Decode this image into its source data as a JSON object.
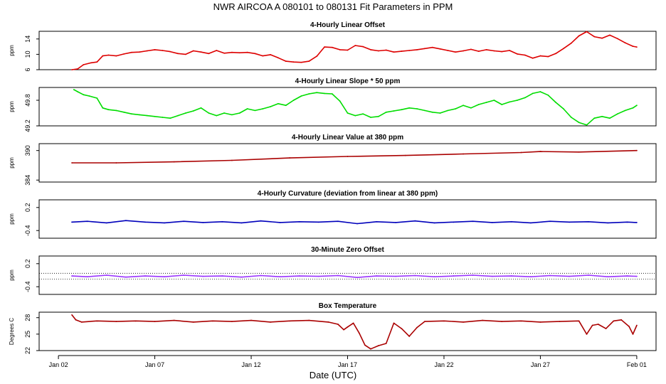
{
  "title": "NWR   AIRCOA A   080101 to 080131   Fit Parameters in PPM",
  "x_axis": {
    "label": "Date (UTC)",
    "ticks": [
      "Jan 02",
      "Jan 07",
      "Jan 12",
      "Jan 17",
      "Jan 22",
      "Jan 27",
      "Feb 01"
    ],
    "tick_days": [
      2,
      7,
      12,
      17,
      22,
      27,
      32
    ]
  },
  "chart_data": [
    {
      "type": "line",
      "title": "4-Hourly Linear Offset",
      "ylabel": "ppm",
      "yticks": [
        "6",
        "10",
        "14"
      ],
      "ytick_values": [
        6,
        10,
        14
      ],
      "ylim": [
        6,
        16
      ],
      "color": "#dd0000",
      "series": [
        {
          "x": [
            2.7,
            3.0,
            3.3,
            3.7,
            4.0,
            4.3,
            4.6,
            5.0,
            5.4,
            5.8,
            6.2,
            6.6,
            7.0,
            7.4,
            7.8,
            8.2,
            8.6,
            9.0,
            9.4,
            9.8,
            10.2,
            10.6,
            11.0,
            11.4,
            11.8,
            12.2,
            12.6,
            13.0,
            13.4,
            13.8,
            14.2,
            14.6,
            15.0,
            15.4,
            15.8,
            16.2,
            16.6,
            17.0,
            17.4,
            17.8,
            18.2,
            18.6,
            19.0,
            19.4,
            19.8,
            20.2,
            20.6,
            21.0,
            21.4,
            21.8,
            22.2,
            22.6,
            23.0,
            23.4,
            23.8,
            24.2,
            24.6,
            25.0,
            25.4,
            25.8,
            26.2,
            26.6,
            27.0,
            27.4,
            27.8,
            28.2,
            28.6,
            29.0,
            29.4,
            29.8,
            30.2,
            30.6,
            31.0,
            31.4,
            31.8,
            32.0
          ],
          "y": [
            6.0,
            6.2,
            7.3,
            7.8,
            8.0,
            9.6,
            9.8,
            9.6,
            10.1,
            10.5,
            10.6,
            10.9,
            11.2,
            11.0,
            10.7,
            10.2,
            10.0,
            10.9,
            10.6,
            10.2,
            11.0,
            10.3,
            10.5,
            10.4,
            10.5,
            10.2,
            9.6,
            9.9,
            9.1,
            8.2,
            8.0,
            7.9,
            8.2,
            9.5,
            11.9,
            11.8,
            11.2,
            11.1,
            12.3,
            12.0,
            11.2,
            10.9,
            11.1,
            10.6,
            10.8,
            11.0,
            11.2,
            11.5,
            11.8,
            11.4,
            11.0,
            10.6,
            10.9,
            11.3,
            10.8,
            11.2,
            10.9,
            10.7,
            11.0,
            10.1,
            9.8,
            9.0,
            9.6,
            9.4,
            10.2,
            11.5,
            12.9,
            14.8,
            15.9,
            14.6,
            14.2,
            15.0,
            14.1,
            13.0,
            12.1,
            11.9
          ]
        }
      ]
    },
    {
      "type": "line",
      "title": "4-Hourly Linear Slope * 50 ppm",
      "ylabel": "ppm",
      "yticks": [
        "49.2",
        "49.8"
      ],
      "ytick_values": [
        49.2,
        49.8
      ],
      "ylim": [
        49.2,
        50.1
      ],
      "color": "#00dd00",
      "series": [
        {
          "x": [
            2.8,
            3.0,
            3.3,
            3.6,
            4.0,
            4.3,
            4.6,
            5.0,
            5.4,
            5.8,
            6.2,
            6.6,
            7.0,
            7.4,
            7.8,
            8.2,
            8.6,
            9.0,
            9.4,
            9.8,
            10.2,
            10.6,
            11.0,
            11.4,
            11.8,
            12.2,
            12.6,
            13.0,
            13.4,
            13.8,
            14.2,
            14.6,
            15.0,
            15.4,
            15.8,
            16.2,
            16.6,
            17.0,
            17.4,
            17.8,
            18.2,
            18.6,
            19.0,
            19.4,
            19.8,
            20.2,
            20.6,
            21.0,
            21.4,
            21.8,
            22.2,
            22.6,
            23.0,
            23.4,
            23.8,
            24.2,
            24.6,
            25.0,
            25.4,
            25.8,
            26.2,
            26.6,
            27.0,
            27.4,
            27.8,
            28.2,
            28.6,
            29.0,
            29.4,
            29.8,
            30.2,
            30.6,
            31.0,
            31.4,
            31.8,
            32.0
          ],
          "y": [
            50.05,
            50.0,
            49.93,
            49.9,
            49.85,
            49.62,
            49.58,
            49.56,
            49.52,
            49.48,
            49.46,
            49.44,
            49.42,
            49.4,
            49.38,
            49.44,
            49.5,
            49.55,
            49.62,
            49.5,
            49.44,
            49.5,
            49.46,
            49.5,
            49.6,
            49.56,
            49.6,
            49.65,
            49.72,
            49.68,
            49.8,
            49.9,
            49.95,
            49.98,
            49.96,
            49.95,
            49.78,
            49.5,
            49.44,
            49.48,
            49.4,
            49.42,
            49.52,
            49.55,
            49.58,
            49.62,
            49.6,
            49.56,
            49.52,
            49.5,
            49.56,
            49.6,
            49.68,
            49.62,
            49.7,
            49.75,
            49.8,
            49.7,
            49.76,
            49.8,
            49.86,
            49.96,
            50.0,
            49.92,
            49.75,
            49.6,
            49.4,
            49.28,
            49.22,
            49.38,
            49.42,
            49.38,
            49.48,
            49.56,
            49.62,
            49.68
          ]
        }
      ]
    },
    {
      "type": "line",
      "title": "4-Hourly Linear Value at 380 ppm",
      "ylabel": "ppm",
      "yticks": [
        "384",
        "390"
      ],
      "ytick_values": [
        384,
        390
      ],
      "ylim": [
        383.6,
        391.4
      ],
      "color": "#aa0000",
      "series": [
        {
          "x": [
            2.7,
            5.0,
            8.0,
            11.0,
            14.0,
            17.0,
            20.0,
            23.0,
            26.0,
            27.0,
            29.0,
            32.0
          ],
          "y": [
            387.5,
            387.5,
            387.7,
            388.0,
            388.5,
            388.8,
            389.0,
            389.3,
            389.6,
            389.8,
            389.7,
            390.0
          ]
        }
      ]
    },
    {
      "type": "line",
      "title": "4-Hourly Curvature (deviation from linear at 380 ppm)",
      "ylabel": "ppm",
      "yticks": [
        "-0.4",
        "0.2"
      ],
      "ytick_values": [
        -0.4,
        0.2
      ],
      "ylim": [
        -0.6,
        0.4
      ],
      "color": "#0000bb",
      "series": [
        {
          "x": [
            2.7,
            3.5,
            4.5,
            5.5,
            6.5,
            7.5,
            8.5,
            9.5,
            10.5,
            11.5,
            12.5,
            13.5,
            14.5,
            15.5,
            16.5,
            17.5,
            18.5,
            19.5,
            20.5,
            21.5,
            22.5,
            23.5,
            24.5,
            25.5,
            26.5,
            27.5,
            28.5,
            29.5,
            30.5,
            31.5,
            32.0
          ],
          "y": [
            -0.18,
            -0.16,
            -0.2,
            -0.14,
            -0.18,
            -0.2,
            -0.16,
            -0.19,
            -0.17,
            -0.2,
            -0.15,
            -0.19,
            -0.17,
            -0.18,
            -0.16,
            -0.22,
            -0.17,
            -0.19,
            -0.15,
            -0.2,
            -0.18,
            -0.16,
            -0.19,
            -0.17,
            -0.2,
            -0.16,
            -0.18,
            -0.17,
            -0.2,
            -0.18,
            -0.19
          ]
        }
      ]
    },
    {
      "type": "line",
      "title": "30-Minute Zero Offset",
      "ylabel": "ppm",
      "yticks": [
        "-0.4",
        "0.2"
      ],
      "ytick_values": [
        -0.4,
        0.2
      ],
      "ylim": [
        -0.6,
        0.4
      ],
      "reference_lines": [
        -0.05,
        -0.2
      ],
      "color": "#9933ff",
      "series": [
        {
          "x": [
            2.7,
            3.5,
            4.5,
            5.5,
            6.5,
            7.5,
            8.5,
            9.5,
            10.5,
            11.5,
            12.5,
            13.5,
            14.5,
            15.5,
            16.5,
            17.5,
            18.5,
            19.5,
            20.5,
            21.5,
            22.5,
            23.5,
            24.5,
            25.5,
            26.5,
            27.5,
            28.5,
            29.5,
            30.5,
            31.5,
            32.0
          ],
          "y": [
            -0.12,
            -0.14,
            -0.1,
            -0.15,
            -0.12,
            -0.14,
            -0.1,
            -0.13,
            -0.12,
            -0.15,
            -0.11,
            -0.14,
            -0.12,
            -0.13,
            -0.11,
            -0.16,
            -0.12,
            -0.13,
            -0.11,
            -0.14,
            -0.12,
            -0.1,
            -0.13,
            -0.12,
            -0.14,
            -0.11,
            -0.13,
            -0.1,
            -0.14,
            -0.12,
            -0.13
          ]
        }
      ]
    },
    {
      "type": "line",
      "title": "Box Temperature",
      "ylabel": "Degrees C",
      "yticks": [
        "22",
        "25",
        "28"
      ],
      "ytick_values": [
        22,
        25,
        28
      ],
      "ylim": [
        22,
        29
      ],
      "color": "#aa0000",
      "series": [
        {
          "x": [
            2.7,
            2.9,
            3.2,
            4.0,
            5.0,
            6.0,
            7.0,
            8.0,
            9.0,
            10.0,
            11.0,
            12.0,
            13.0,
            14.0,
            15.0,
            16.0,
            16.5,
            16.8,
            17.0,
            17.3,
            17.6,
            17.9,
            18.2,
            18.6,
            19.0,
            19.4,
            19.8,
            20.2,
            20.6,
            21.0,
            22.0,
            23.0,
            24.0,
            25.0,
            26.0,
            27.0,
            28.0,
            29.0,
            29.4,
            29.7,
            30.0,
            30.4,
            30.8,
            31.2,
            31.6,
            31.8,
            32.0
          ],
          "y": [
            28.5,
            27.6,
            27.2,
            27.4,
            27.3,
            27.4,
            27.3,
            27.5,
            27.2,
            27.4,
            27.3,
            27.5,
            27.2,
            27.4,
            27.5,
            27.2,
            26.8,
            25.8,
            26.3,
            27.0,
            25.2,
            23.0,
            22.3,
            22.9,
            23.3,
            27.0,
            26.0,
            24.6,
            26.2,
            27.3,
            27.4,
            27.2,
            27.5,
            27.3,
            27.4,
            27.2,
            27.3,
            27.4,
            25.0,
            26.6,
            26.8,
            26.0,
            27.4,
            27.6,
            26.4,
            25.0,
            26.6
          ]
        }
      ]
    }
  ]
}
